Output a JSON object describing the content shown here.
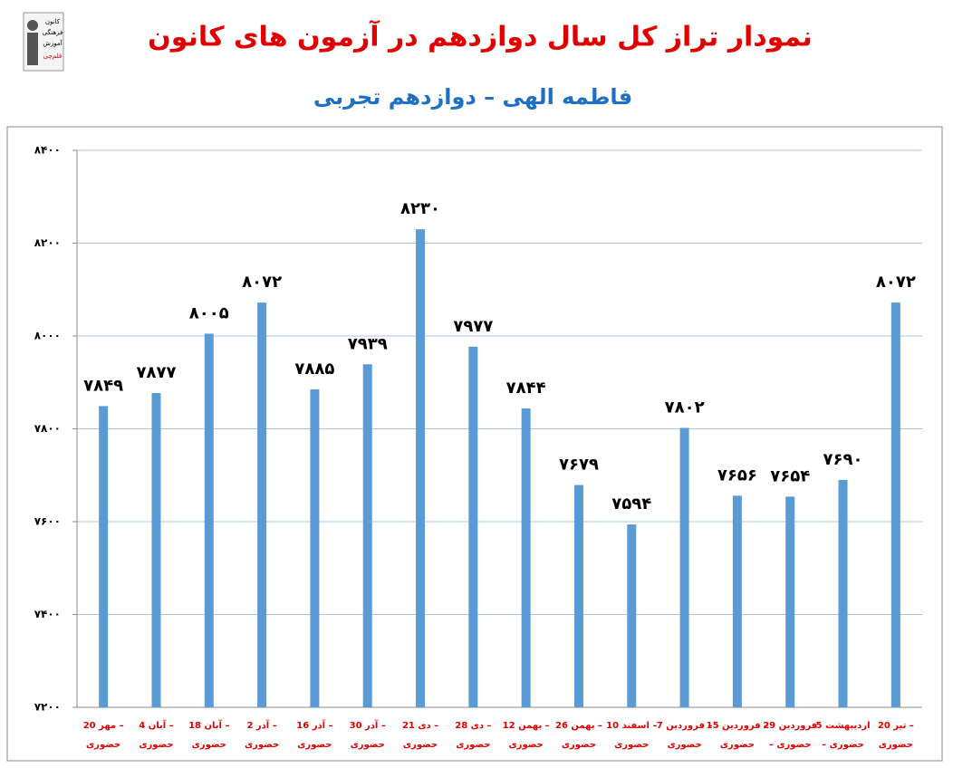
{
  "logo_text": [
    "کانون",
    "فرهنگی",
    "آموزش",
    "قلم‌چی"
  ],
  "chart_data": {
    "type": "bar",
    "title": "نمودار تراز کل سال دوازدهم در آزمون های کانون",
    "subtitle": "فاطمه الهی – دوازدهم تجربی",
    "categories": [
      [
        "20 مهر –",
        "حضوری"
      ],
      [
        "4 آبان –",
        "حضوری"
      ],
      [
        "18 آبان –",
        "حضوری"
      ],
      [
        "2 آذر –",
        "حضوری"
      ],
      [
        "16 آذر –",
        "حضوری"
      ],
      [
        "30 آذر –",
        "حضوری"
      ],
      [
        "21 دی –",
        "حضوری"
      ],
      [
        "28 دی –",
        "حضوری"
      ],
      [
        "12 بهمن –",
        "حضوری"
      ],
      [
        "26 بهمن –",
        "حضوری"
      ],
      [
        "10 اسفند –",
        "حضوری"
      ],
      [
        "7 فروردین –",
        "حضوری"
      ],
      [
        "15 فروردین –",
        "حضوری"
      ],
      [
        "29 فروردین",
        "– حضوری"
      ],
      [
        "5 اردیبهشت",
        "– حضوری"
      ],
      [
        "20 تیر –",
        "حضوری"
      ]
    ],
    "values": [
      7849,
      7877,
      8005,
      8072,
      7885,
      7939,
      8230,
      7977,
      7844,
      7679,
      7594,
      7802,
      7656,
      7654,
      7690,
      8072
    ],
    "value_labels": [
      "۷۸۴۹",
      "۷۸۷۷",
      "۸۰۰۵",
      "۸۰۷۲",
      "۷۸۸۵",
      "۷۹۳۹",
      "۸۲۳۰",
      "۷۹۷۷",
      "۷۸۴۴",
      "۷۶۷۹",
      "۷۵۹۴",
      "۷۸۰۲",
      "۷۶۵۶",
      "۷۶۵۴",
      "۷۶۹۰",
      "۸۰۷۲"
    ],
    "color": "#5b9bd5",
    "ylim": [
      7200,
      8400
    ],
    "yticks": [
      {
        "value": 7200,
        "label": "۷۲۰۰"
      },
      {
        "value": 7400,
        "label": "۷۴۰۰"
      },
      {
        "value": 7600,
        "label": "۷۶۰۰"
      },
      {
        "value": 7800,
        "label": "۷۸۰۰"
      },
      {
        "value": 8000,
        "label": "۸۰۰۰"
      },
      {
        "value": 8200,
        "label": "۸۲۰۰"
      },
      {
        "value": 8400,
        "label": "۸۴۰۰"
      }
    ],
    "grid": true
  }
}
